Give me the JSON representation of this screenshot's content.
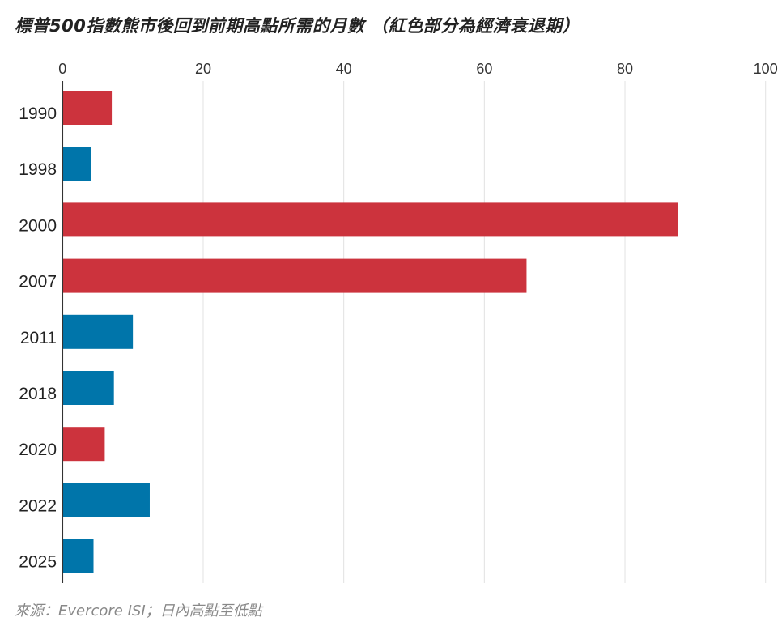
{
  "chart_data": {
    "type": "bar",
    "orientation": "horizontal",
    "title": "標普500指數熊市後回到前期高點所需的月數 （紅色部分為經濟衰退期）",
    "source": "來源：Evercore ISI；日內高點至低點",
    "categories": [
      "1990",
      "1998",
      "2000",
      "2007",
      "2011",
      "2018",
      "2020",
      "2022",
      "2025"
    ],
    "values": [
      7,
      4,
      87.5,
      66,
      10,
      7.3,
      6,
      12.4,
      4.4
    ],
    "recession": [
      true,
      false,
      true,
      true,
      false,
      false,
      true,
      false,
      false
    ],
    "xlim": [
      0,
      100
    ],
    "xticks": [
      "0",
      "20",
      "40",
      "60",
      "80",
      "100"
    ],
    "xaxis_position": "top",
    "grid": true,
    "colors": {
      "recession": "#cc333d",
      "non_recession": "#0075aa",
      "grid": "#e2e2e2"
    }
  }
}
